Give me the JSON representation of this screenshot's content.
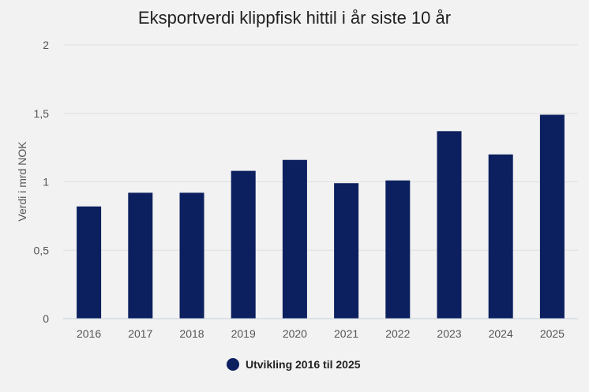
{
  "chart_data": {
    "type": "bar",
    "title": "Eksportverdi klippfisk hittil i år siste 10 år",
    "ylabel": "Verdi i mrd NOK",
    "xlabel": "",
    "categories": [
      "2016",
      "2017",
      "2018",
      "2019",
      "2020",
      "2021",
      "2022",
      "2023",
      "2024",
      "2025"
    ],
    "series": [
      {
        "name": "Utvikling 2016 til 2025",
        "color": "#0c1f5f",
        "values": [
          0.82,
          0.92,
          0.92,
          1.08,
          1.16,
          0.99,
          1.01,
          1.37,
          1.2,
          1.49
        ]
      }
    ],
    "ylim": [
      0,
      2
    ],
    "yticks": [
      "0",
      "0,5",
      "1",
      "1,5",
      "2"
    ],
    "grid": true,
    "legend": "bottom-center"
  }
}
